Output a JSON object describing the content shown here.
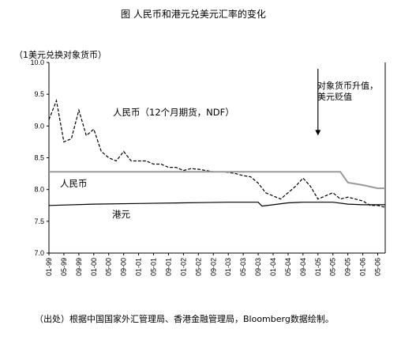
{
  "chart_data": {
    "type": "line",
    "title": "图  人民币和港元兑美元汇率的变化",
    "unit_label": "（1美元兑换对象货币）",
    "ylim": [
      7.0,
      10.0
    ],
    "yticks": [
      "7.0",
      "7.5",
      "8.0",
      "8.5",
      "9.0",
      "9.5",
      "10.0"
    ],
    "x_ticks": [
      "01-99",
      "05-99",
      "09-99",
      "01-00",
      "05-00",
      "09-00",
      "01-01",
      "05-01",
      "09-01",
      "01-02",
      "05-02",
      "09-02",
      "01-03",
      "05-03",
      "09-03",
      "01-04",
      "05-04",
      "09-04",
      "01-05",
      "05-05",
      "09-05",
      "01-06",
      "05-06"
    ],
    "series": [
      {
        "name": "人民币（12个月期货，NDF）",
        "style": "dashed",
        "x": [
          "01-99",
          "03-99",
          "05-99",
          "07-99",
          "09-99",
          "11-99",
          "01-00",
          "03-00",
          "05-00",
          "07-00",
          "09-00",
          "11-00",
          "01-01",
          "03-01",
          "05-01",
          "07-01",
          "09-01",
          "11-01",
          "01-02",
          "03-02",
          "05-02",
          "07-02",
          "09-02",
          "11-02",
          "01-03",
          "03-03",
          "05-03",
          "07-03",
          "09-03",
          "11-03",
          "01-04",
          "03-04",
          "05-04",
          "07-04",
          "09-04",
          "11-04",
          "01-05",
          "03-05",
          "05-05",
          "07-05",
          "09-05",
          "11-05",
          "01-06",
          "03-06",
          "05-06",
          "07-06"
        ],
        "values": [
          9.1,
          9.4,
          8.75,
          8.8,
          9.25,
          8.85,
          8.95,
          8.6,
          8.5,
          8.45,
          8.6,
          8.45,
          8.45,
          8.45,
          8.4,
          8.4,
          8.35,
          8.35,
          8.3,
          8.33,
          8.32,
          8.3,
          8.28,
          8.28,
          8.27,
          8.25,
          8.22,
          8.2,
          8.1,
          7.95,
          7.9,
          7.85,
          7.95,
          8.05,
          8.18,
          8.05,
          7.85,
          7.9,
          7.95,
          7.85,
          7.88,
          7.85,
          7.82,
          7.75,
          7.75,
          7.72
        ]
      },
      {
        "name": "人民币",
        "style": "solid-gray",
        "x": [
          "01-99",
          "01-00",
          "01-01",
          "01-02",
          "01-03",
          "01-04",
          "01-05",
          "07-05",
          "09-05",
          "01-06",
          "05-06",
          "07-06"
        ],
        "values": [
          8.28,
          8.28,
          8.28,
          8.28,
          8.28,
          8.28,
          8.28,
          8.28,
          8.11,
          8.07,
          8.02,
          8.02
        ]
      },
      {
        "name": "港元",
        "style": "solid",
        "x": [
          "01-99",
          "01-00",
          "01-01",
          "01-02",
          "01-03",
          "09-03",
          "10-03",
          "01-04",
          "05-04",
          "09-04",
          "01-05",
          "05-05",
          "09-05",
          "01-06",
          "05-06",
          "07-06"
        ],
        "values": [
          7.75,
          7.77,
          7.78,
          7.79,
          7.8,
          7.8,
          7.74,
          7.76,
          7.79,
          7.8,
          7.8,
          7.8,
          7.77,
          7.76,
          7.76,
          7.76
        ]
      }
    ],
    "annotation": {
      "text_lines": [
        "对象货币升值，",
        "美元贬值"
      ],
      "arrow_x": "01-05",
      "arrow_from": 9.9,
      "arrow_to": 8.85
    },
    "series_labels": {
      "ndf": "人民币（12个月期货，NDF）",
      "rmb": "人民币",
      "hkd": "港元"
    }
  },
  "source_note": "（出处）根据中国国家外汇管理局、香港金融管理局，Bloomberg数据绘制。"
}
